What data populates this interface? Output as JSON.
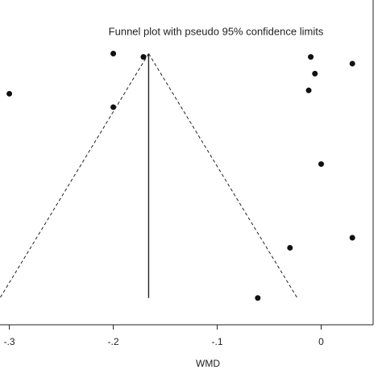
{
  "chart_data": {
    "type": "scatter",
    "title": "Funnel plot with pseudo 95% confidence limits",
    "x_label": "WMD",
    "xlim": [
      -0.309,
      0.05
    ],
    "ylim": [
      0.081,
      -0.016
    ],
    "xticks": [
      {
        "value": -0.3,
        "label": "-.3"
      },
      {
        "value": -0.2,
        "label": "-.2"
      },
      {
        "value": -0.1,
        "label": "-.1"
      },
      0
    ],
    "color": "#111111",
    "points": {
      "x": [
        -0.2,
        -0.171,
        -0.3,
        -0.2,
        -0.01,
        0.03,
        -0.006,
        -0.012,
        0,
        -0.03,
        0.03,
        -0.061
      ],
      "y": [
        0,
        0.001,
        0.012,
        0.016,
        0.001,
        0.003,
        0.006,
        0.011,
        0.033,
        0.058,
        0.055,
        0.073
      ]
    },
    "lines": [
      {
        "x": [
          -0.166,
          -0.309
        ],
        "y": [
          0,
          0.073
        ],
        "dashed": true
      },
      {
        "x": [
          -0.166,
          -0.023
        ],
        "y": [
          0,
          0.073
        ],
        "dashed": true
      },
      {
        "x": [
          -0.166,
          -0.166
        ],
        "y": [
          0,
          0.073
        ],
        "dashed": false
      }
    ]
  }
}
